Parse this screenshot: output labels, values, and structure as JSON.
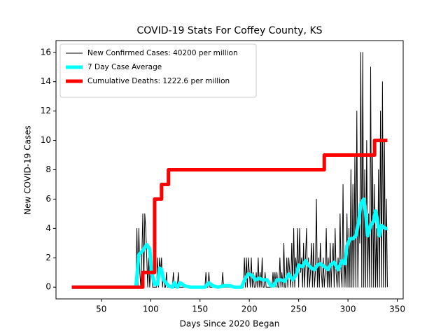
{
  "chart_data": {
    "type": "line",
    "title": "COVID-19 Stats For Coffey County, KS",
    "xlabel": "Days Since 2020 Began",
    "ylabel": "New COVID-19 Cases",
    "xlim": [
      4,
      356
    ],
    "ylim": [
      -0.8,
      16.8
    ],
    "xticks": [
      50,
      100,
      150,
      200,
      250,
      300,
      350
    ],
    "yticks": [
      0,
      2,
      4,
      6,
      8,
      10,
      12,
      14,
      16
    ],
    "legend": "upper left",
    "series": [
      {
        "name": "New Confirmed Cases: 40200 per million",
        "color": "#000000",
        "width": 1,
        "x": [
          20,
          85,
          86,
          87,
          88,
          89,
          90,
          91,
          92,
          93,
          94,
          95,
          96,
          97,
          98,
          99,
          100,
          101,
          102,
          103,
          104,
          105,
          106,
          107,
          108,
          109,
          110,
          111,
          112,
          113,
          114,
          115,
          116,
          117,
          118,
          119,
          120,
          121,
          122,
          123,
          124,
          125,
          126,
          127,
          128,
          129,
          130,
          131,
          132,
          133,
          134,
          135,
          136,
          137,
          138,
          139,
          140,
          141,
          142,
          143,
          144,
          145,
          146,
          147,
          148,
          149,
          150,
          151,
          152,
          153,
          154,
          155,
          156,
          157,
          158,
          159,
          160,
          161,
          162,
          163,
          164,
          165,
          166,
          167,
          168,
          169,
          170,
          171,
          172,
          173,
          174,
          175,
          176,
          177,
          178,
          179,
          180,
          181,
          182,
          183,
          184,
          185,
          186,
          187,
          188,
          189,
          190,
          191,
          192,
          193,
          194,
          195,
          196,
          197,
          198,
          199,
          200,
          201,
          202,
          203,
          204,
          205,
          206,
          207,
          208,
          209,
          210,
          211,
          212,
          213,
          214,
          215,
          216,
          217,
          218,
          219,
          220,
          221,
          222,
          223,
          224,
          225,
          226,
          227,
          228,
          229,
          230,
          231,
          232,
          233,
          234,
          235,
          236,
          237,
          238,
          239,
          240,
          241,
          242,
          243,
          244,
          245,
          246,
          247,
          248,
          249,
          250,
          251,
          252,
          253,
          254,
          255,
          256,
          257,
          258,
          259,
          260,
          261,
          262,
          263,
          264,
          265,
          266,
          267,
          268,
          269,
          270,
          271,
          272,
          273,
          274,
          275,
          276,
          277,
          278,
          279,
          280,
          281,
          282,
          283,
          284,
          285,
          286,
          287,
          288,
          289,
          290,
          291,
          292,
          293,
          294,
          295,
          296,
          297,
          298,
          299,
          300,
          301,
          302,
          303,
          304,
          305,
          306,
          307,
          308,
          309,
          310,
          311,
          312,
          313,
          314,
          315,
          316,
          317,
          318,
          319,
          320,
          321,
          322,
          323,
          324,
          325,
          326,
          327,
          328,
          329,
          330,
          331,
          332,
          333,
          334,
          335,
          336,
          337,
          338,
          339,
          340
        ],
        "values": [
          0,
          0,
          4,
          0,
          4,
          1,
          0,
          2,
          5,
          0,
          5,
          4,
          2,
          0,
          2,
          0,
          1,
          2,
          0,
          0,
          0,
          0,
          0,
          2,
          0,
          2,
          1,
          2,
          0,
          1,
          0,
          0,
          1,
          0,
          0,
          0,
          0,
          0,
          0,
          1,
          0,
          0,
          0,
          0,
          1,
          0,
          0,
          0,
          0,
          0,
          0,
          0,
          0,
          0,
          0,
          0,
          0,
          0,
          0,
          0,
          0,
          0,
          0,
          0,
          0,
          0,
          0,
          0,
          0,
          0,
          0,
          0,
          1,
          0,
          0,
          1,
          0,
          0,
          0,
          0,
          0,
          0,
          0,
          0,
          0,
          0,
          0,
          0,
          0,
          1,
          0,
          0,
          0,
          0,
          0,
          0,
          0,
          0,
          0,
          0,
          0,
          0,
          0,
          0,
          0,
          0,
          0,
          0,
          0,
          0,
          0,
          2,
          0,
          2,
          0,
          2,
          1,
          0,
          2,
          0,
          1,
          0,
          0,
          1,
          0,
          2,
          0,
          1,
          0,
          2,
          0,
          0,
          1,
          0,
          0,
          0,
          0,
          0,
          0,
          0,
          1,
          0,
          1,
          0,
          1,
          0,
          0,
          2,
          0,
          1,
          0,
          3,
          0,
          0,
          2,
          0,
          2,
          1,
          0,
          3,
          0,
          4,
          0,
          2,
          1,
          4,
          0,
          4,
          1,
          2,
          0,
          3,
          0,
          2,
          4,
          0,
          2,
          0,
          1,
          3,
          0,
          3,
          0,
          1,
          6,
          0,
          2,
          0,
          3,
          1,
          0,
          2,
          0,
          1,
          4,
          0,
          2,
          0,
          3,
          0,
          2,
          3,
          0,
          4,
          1,
          0,
          2,
          0,
          5,
          1,
          0,
          7,
          0,
          2,
          0,
          5,
          0,
          4,
          0,
          8,
          0,
          7,
          0,
          9,
          0,
          12,
          0,
          5,
          3,
          16,
          0,
          16,
          0,
          8,
          0,
          10,
          0,
          5,
          0,
          15,
          0,
          9,
          0,
          7,
          0,
          4,
          0,
          8,
          0,
          12,
          0,
          14,
          0,
          10,
          0,
          6,
          0
        ]
      },
      {
        "name": "7 Day Case Average",
        "color": "#00ffff",
        "width": 5,
        "x": [
          20,
          85,
          88,
          92,
          96,
          99,
          101,
          104,
          107,
          109,
          111,
          113,
          118,
          122,
          124,
          127,
          130,
          134,
          140,
          155,
          159,
          163,
          168,
          175,
          180,
          185,
          192,
          196,
          199,
          203,
          206,
          210,
          214,
          218,
          222,
          225,
          228,
          232,
          236,
          240,
          244,
          248,
          250,
          254,
          257,
          260,
          263,
          266,
          269,
          272,
          276,
          280,
          282,
          286,
          290,
          294,
          297,
          299,
          302,
          305,
          308,
          311,
          313,
          316,
          318,
          320,
          323,
          326,
          328,
          330,
          332,
          334,
          338,
          340
        ],
        "values": [
          0,
          0,
          2.2,
          2.5,
          2.9,
          2.6,
          1,
          0.2,
          0.2,
          1.3,
          1.2,
          0.5,
          0.1,
          0,
          0.3,
          0,
          0.3,
          0.1,
          0,
          0,
          0.3,
          0.1,
          0,
          0.1,
          0.1,
          0,
          0,
          0.6,
          0.9,
          0.8,
          0.5,
          0.6,
          0.5,
          0.5,
          0.1,
          0.1,
          0.5,
          0.5,
          0.4,
          0.9,
          0.5,
          0.9,
          1.5,
          1.4,
          1.8,
          1.5,
          1.3,
          1.2,
          1.5,
          1.6,
          1.4,
          1.2,
          1.5,
          1.7,
          1.2,
          1.8,
          1.6,
          2.8,
          3.3,
          3.3,
          3.5,
          4.5,
          5.7,
          6,
          5,
          3.5,
          4.2,
          4.5,
          5.2,
          4.5,
          3.5,
          4.2,
          4,
          4
        ]
      },
      {
        "name": "Cumulative Deaths: 1222.6 per million",
        "color": "#ff0000",
        "width": 5,
        "x": [
          20,
          92,
          92,
          104,
          104,
          111,
          111,
          118,
          118,
          276,
          276,
          327,
          327,
          340
        ],
        "values": [
          0,
          0,
          1,
          1,
          6,
          6,
          7,
          7,
          8,
          8,
          9,
          9,
          10,
          10
        ]
      }
    ]
  }
}
